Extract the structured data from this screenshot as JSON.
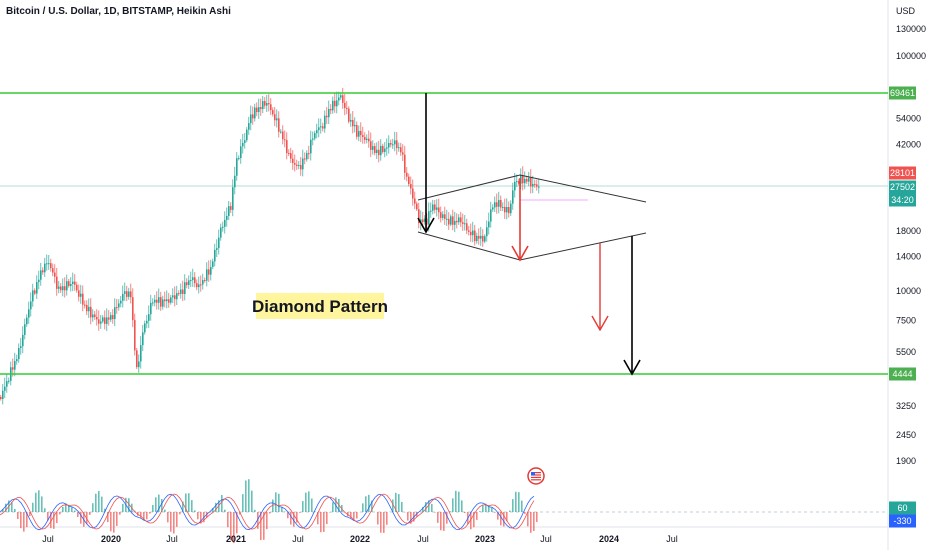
{
  "header": {
    "title": "Bitcoin / U.S. Dollar, 1D, BITSTAMP, Heikin Ashi",
    "currency": "USD"
  },
  "annotation": {
    "label": "Diamond Pattern"
  },
  "chart_data": {
    "type": "candlestick",
    "y_scale": "log",
    "y_ticks": [
      "130000",
      "100000",
      "54000",
      "42000",
      "18000",
      "14000",
      "10000",
      "7500",
      "5500",
      "3250",
      "2450",
      "1900"
    ],
    "y_tick_values": [
      130000,
      100000,
      54000,
      42000,
      18000,
      14000,
      10000,
      7500,
      5500,
      3250,
      2450,
      1900
    ],
    "x_ticks": [
      "Jul",
      "2020",
      "Jul",
      "2021",
      "Jul",
      "2022",
      "Jul",
      "2023",
      "Jul",
      "2024",
      "Jul"
    ],
    "price_tags": [
      {
        "label": "69461",
        "value": 69461,
        "color": "#4caf50"
      },
      {
        "label": "28101",
        "value": 28101,
        "color": "#ef5350"
      },
      {
        "label": "27502",
        "value": 27502,
        "color": "#26a69a"
      },
      {
        "label": "34:20",
        "value": 24200,
        "color": "#26a69a"
      },
      {
        "label": "4444",
        "value": 4444,
        "color": "#4caf50"
      }
    ],
    "horizontal_levels": [
      {
        "name": "resistance",
        "value": 69461,
        "color": "#33cc33"
      },
      {
        "name": "support",
        "value": 4444,
        "color": "#33cc33"
      }
    ],
    "indicator": {
      "tags": [
        {
          "label": "60",
          "color": "#26a69a"
        },
        {
          "label": "-330",
          "color": "#2962ff"
        }
      ]
    },
    "colors": {
      "up": "#26a69a",
      "down": "#ef5350",
      "accent": "#2962ff"
    }
  }
}
